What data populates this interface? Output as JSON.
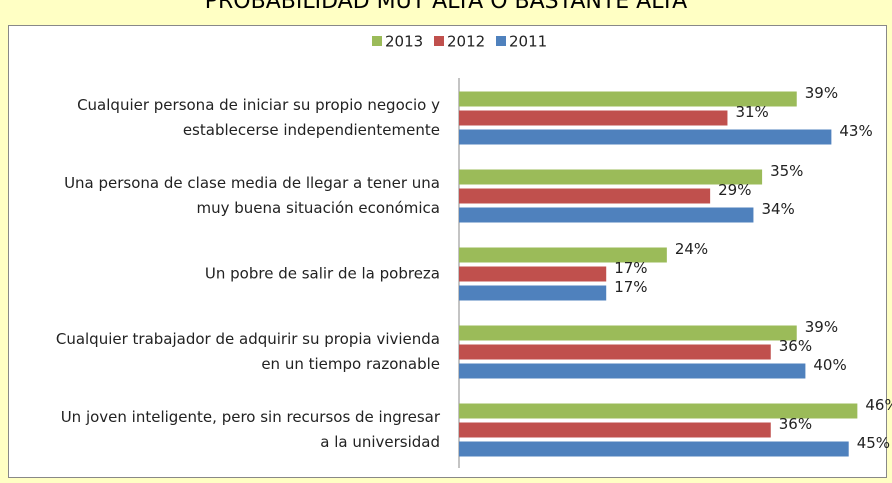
{
  "chart_data": {
    "type": "bar",
    "orientation": "horizontal",
    "title": "PROBABILIDAD  MUY ALTA O BASTANTE ALTA",
    "categories": [
      [
        "Cualquier persona de iniciar su propio negocio y",
        "establecerse independientemente"
      ],
      [
        "Una persona de clase media de llegar a tener una",
        "muy buena situación económica"
      ],
      [
        "Un pobre de salir de la pobreza"
      ],
      [
        "Cualquier trabajador de adquirir su propia vivienda",
        "en un tiempo razonable"
      ],
      [
        "Un joven inteligente, pero sin recursos de ingresar",
        "a la universidad"
      ]
    ],
    "series": [
      {
        "name": "2013",
        "color": "#9bbb59",
        "values": [
          39,
          35,
          24,
          39,
          46
        ],
        "value_labels": [
          "39%",
          "35%",
          "24%",
          "39%",
          "46%"
        ]
      },
      {
        "name": "2012",
        "color": "#c0504d",
        "values": [
          31,
          29,
          17,
          36,
          36
        ],
        "value_labels": [
          "31%",
          "29%",
          "17%",
          "36%",
          "36%"
        ]
      },
      {
        "name": "2011",
        "color": "#4f81bd",
        "values": [
          43,
          34,
          17,
          40,
          45
        ],
        "value_labels": [
          "43%",
          "34%",
          "17%",
          "40%",
          "45%"
        ]
      }
    ],
    "xlim": [
      0,
      50
    ]
  }
}
